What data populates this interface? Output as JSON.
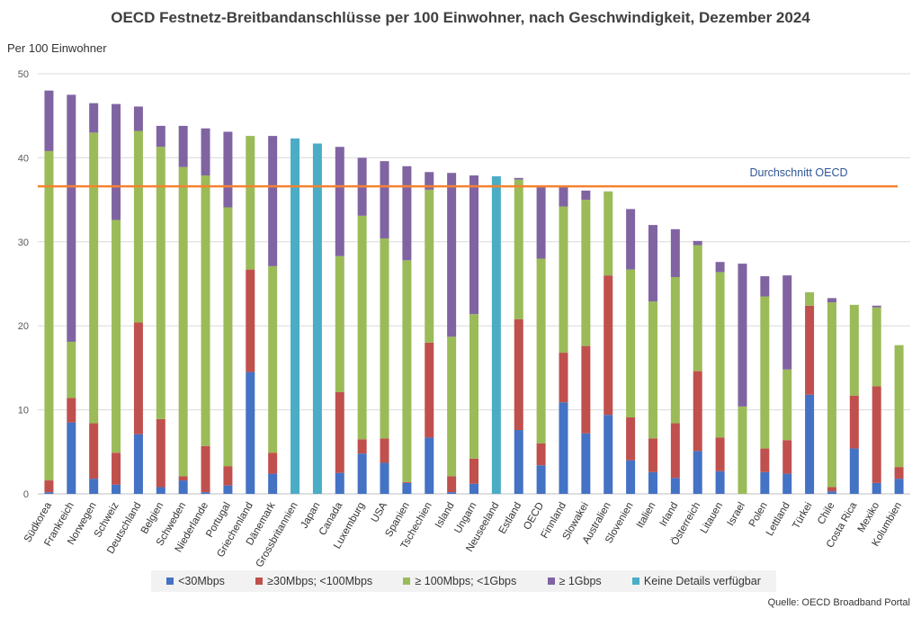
{
  "chart_data": {
    "type": "bar",
    "stacked": true,
    "title": "OECD Festnetz-Breitbandanschlüsse per 100 Einwohner, nach Geschwindigkeit, Dezember 2024",
    "ylabel": "Per 100 Einwohner",
    "ylim": [
      0,
      50
    ],
    "yticks": [
      0,
      10,
      20,
      30,
      40,
      50
    ],
    "grid": true,
    "legend_position": "bottom",
    "source": "Quelle: OECD Broadband Portal",
    "reference_line": {
      "label": "Durchschnitt OECD",
      "value": 36.6,
      "color": "#f58231"
    },
    "categories": [
      "Südkorea",
      "Frankreich",
      "Norwegen",
      "Schweiz",
      "Deutschland",
      "Belgien",
      "Schweden",
      "Niederlande",
      "Portugal",
      "Griechenland",
      "Dänemark",
      "Grossbritannien",
      "Japan",
      "Canada",
      "Luxemburg",
      "USA",
      "Spanien",
      "Tschechien",
      "Island",
      "Ungarn",
      "Neuseeland",
      "Estland",
      "OECD",
      "Finnland",
      "Slowakei",
      "Australien",
      "Slovenien",
      "Italien",
      "Irland",
      "Österreich",
      "Litauen",
      "Israel",
      "Polen",
      "Lettland",
      "Türkei",
      "Chile",
      "Costa Rica",
      "Mexiko",
      "Kolumbien"
    ],
    "series": [
      {
        "name": "<30Mbps",
        "color": "#4472c4",
        "values": [
          0.2,
          8.5,
          1.8,
          1.1,
          7.1,
          0.8,
          1.6,
          0.2,
          1.0,
          14.5,
          2.4,
          0,
          0,
          2.5,
          4.8,
          3.7,
          1.3,
          6.7,
          0.2,
          1.2,
          0,
          7.6,
          3.4,
          10.9,
          7.2,
          9.4,
          4.0,
          2.6,
          1.9,
          5.1,
          2.7,
          0,
          2.6,
          2.4,
          11.8,
          0.3,
          5.4,
          1.3,
          1.8
        ]
      },
      {
        "name": "≥30Mbps;  <100Mbps",
        "color": "#c0504d",
        "values": [
          1.4,
          2.9,
          6.6,
          3.8,
          13.3,
          8.1,
          0.5,
          5.5,
          2.3,
          12.2,
          2.5,
          0,
          0,
          9.6,
          1.7,
          2.9,
          0.1,
          11.3,
          1.9,
          3.0,
          0,
          13.2,
          2.6,
          5.9,
          10.4,
          16.6,
          5.1,
          4.0,
          6.5,
          9.5,
          4.0,
          0,
          2.8,
          4.0,
          10.6,
          0.5,
          6.3,
          11.5,
          1.4
        ]
      },
      {
        "name": "≥ 100Mbps; <1Gbps",
        "color": "#9bbb59",
        "values": [
          39.2,
          6.7,
          34.6,
          27.7,
          22.8,
          32.4,
          36.8,
          32.2,
          30.8,
          15.9,
          22.2,
          0,
          0,
          16.2,
          26.6,
          23.8,
          26.4,
          18.2,
          16.6,
          17.2,
          0,
          16.6,
          22.0,
          17.4,
          17.4,
          10.0,
          17.6,
          16.3,
          17.4,
          15.0,
          19.7,
          10.4,
          18.1,
          8.4,
          1.6,
          22.0,
          10.8,
          9.4,
          14.5
        ]
      },
      {
        "name": "≥ 1Gbps",
        "color": "#8064a2",
        "values": [
          7.2,
          29.4,
          3.5,
          13.8,
          2.9,
          2.5,
          4.9,
          5.6,
          9.0,
          0,
          15.5,
          0,
          0,
          13.0,
          6.9,
          9.2,
          11.2,
          2.1,
          19.5,
          16.5,
          0,
          0.2,
          8.5,
          2.3,
          1.1,
          0,
          7.2,
          9.1,
          5.7,
          0.5,
          1.2,
          17.0,
          2.4,
          11.2,
          0,
          0.5,
          0,
          0.2,
          0
        ]
      },
      {
        "name": "Keine Details verfügbar",
        "color": "#4bacc6",
        "values": [
          0,
          0,
          0,
          0,
          0,
          0,
          0,
          0,
          0,
          0,
          0,
          42.3,
          41.7,
          0,
          0,
          0,
          0,
          0,
          0,
          0,
          37.8,
          0,
          0,
          0,
          0,
          0,
          0,
          0,
          0,
          0,
          0,
          0,
          0,
          0,
          0,
          0,
          0,
          0,
          0
        ]
      }
    ]
  }
}
